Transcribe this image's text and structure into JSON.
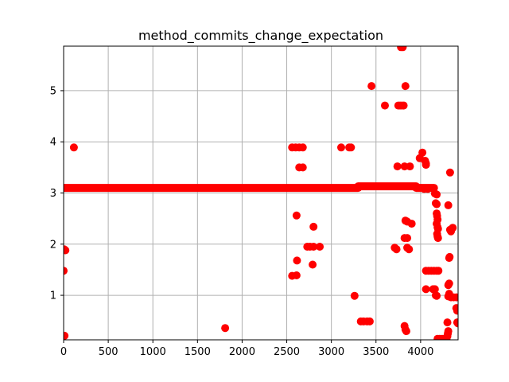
{
  "chart_data": {
    "type": "scatter",
    "title": "method_commits_change_expectation",
    "xlabel": "",
    "ylabel": "",
    "xlim": [
      0,
      4420
    ],
    "ylim": [
      0.13,
      5.87
    ],
    "x_ticks": [
      0,
      500,
      1000,
      1500,
      2000,
      2500,
      3000,
      3500,
      4000
    ],
    "y_ticks": [
      1,
      2,
      3,
      4,
      5
    ],
    "x_tick_labels": [
      "0",
      "500",
      "1000",
      "1500",
      "2000",
      "2500",
      "3000",
      "3500",
      "4000"
    ],
    "y_tick_labels": [
      "1",
      "2",
      "3",
      "4",
      "5"
    ],
    "grid": true,
    "marker_color": "#ff0000",
    "dense_band": {
      "segments": [
        {
          "x_start": 0,
          "x_end": 3300,
          "y": 3.1
        },
        {
          "x_start": 3300,
          "x_end": 3950,
          "y": 3.13
        },
        {
          "x_start": 3950,
          "x_end": 4150,
          "y": 3.1
        }
      ]
    },
    "points": [
      {
        "x": 0,
        "y": 1.48
      },
      {
        "x": 5,
        "y": 1.9
      },
      {
        "x": 20,
        "y": 1.88
      },
      {
        "x": 10,
        "y": 0.21
      },
      {
        "x": 115,
        "y": 3.89
      },
      {
        "x": 1810,
        "y": 0.36
      },
      {
        "x": 2560,
        "y": 3.89
      },
      {
        "x": 2600,
        "y": 3.89
      },
      {
        "x": 2640,
        "y": 3.89
      },
      {
        "x": 2680,
        "y": 3.89
      },
      {
        "x": 2640,
        "y": 3.5
      },
      {
        "x": 2680,
        "y": 3.5
      },
      {
        "x": 2610,
        "y": 2.56
      },
      {
        "x": 2800,
        "y": 2.34
      },
      {
        "x": 2730,
        "y": 1.95
      },
      {
        "x": 2760,
        "y": 1.95
      },
      {
        "x": 2800,
        "y": 1.95
      },
      {
        "x": 2870,
        "y": 1.95
      },
      {
        "x": 2615,
        "y": 1.68
      },
      {
        "x": 2790,
        "y": 1.6
      },
      {
        "x": 2560,
        "y": 1.38
      },
      {
        "x": 2610,
        "y": 1.39
      },
      {
        "x": 3110,
        "y": 3.89
      },
      {
        "x": 3200,
        "y": 3.89
      },
      {
        "x": 3220,
        "y": 3.89
      },
      {
        "x": 3260,
        "y": 0.99
      },
      {
        "x": 3330,
        "y": 0.49
      },
      {
        "x": 3360,
        "y": 0.49
      },
      {
        "x": 3400,
        "y": 0.49
      },
      {
        "x": 3430,
        "y": 0.49
      },
      {
        "x": 3450,
        "y": 5.09
      },
      {
        "x": 3600,
        "y": 4.71
      },
      {
        "x": 3750,
        "y": 4.71
      },
      {
        "x": 3770,
        "y": 4.71
      },
      {
        "x": 3790,
        "y": 4.71
      },
      {
        "x": 3810,
        "y": 4.71
      },
      {
        "x": 3780,
        "y": 5.85
      },
      {
        "x": 3800,
        "y": 5.85
      },
      {
        "x": 3830,
        "y": 5.09
      },
      {
        "x": 3740,
        "y": 3.52
      },
      {
        "x": 3820,
        "y": 3.52
      },
      {
        "x": 3880,
        "y": 3.52
      },
      {
        "x": 3710,
        "y": 1.93
      },
      {
        "x": 3730,
        "y": 1.9
      },
      {
        "x": 3830,
        "y": 2.46
      },
      {
        "x": 3850,
        "y": 2.44
      },
      {
        "x": 3900,
        "y": 2.4
      },
      {
        "x": 3820,
        "y": 2.12
      },
      {
        "x": 3850,
        "y": 2.12
      },
      {
        "x": 3850,
        "y": 1.93
      },
      {
        "x": 3870,
        "y": 1.9
      },
      {
        "x": 3820,
        "y": 0.4
      },
      {
        "x": 3830,
        "y": 0.33
      },
      {
        "x": 3840,
        "y": 0.3
      },
      {
        "x": 3990,
        "y": 3.68
      },
      {
        "x": 4020,
        "y": 3.79
      },
      {
        "x": 4050,
        "y": 3.63
      },
      {
        "x": 4060,
        "y": 3.58
      },
      {
        "x": 4060,
        "y": 3.55
      },
      {
        "x": 4000,
        "y": 3.1
      },
      {
        "x": 4040,
        "y": 3.08
      },
      {
        "x": 4080,
        "y": 3.08
      },
      {
        "x": 4160,
        "y": 2.99
      },
      {
        "x": 4180,
        "y": 2.97
      },
      {
        "x": 4170,
        "y": 2.8
      },
      {
        "x": 4180,
        "y": 2.78
      },
      {
        "x": 4180,
        "y": 2.6
      },
      {
        "x": 4185,
        "y": 2.55
      },
      {
        "x": 4190,
        "y": 2.48
      },
      {
        "x": 4180,
        "y": 2.4
      },
      {
        "x": 4190,
        "y": 2.33
      },
      {
        "x": 4195,
        "y": 2.3
      },
      {
        "x": 4185,
        "y": 2.2
      },
      {
        "x": 4190,
        "y": 2.15
      },
      {
        "x": 4195,
        "y": 2.12
      },
      {
        "x": 4060,
        "y": 1.48
      },
      {
        "x": 4090,
        "y": 1.48
      },
      {
        "x": 4120,
        "y": 1.48
      },
      {
        "x": 4150,
        "y": 1.48
      },
      {
        "x": 4180,
        "y": 1.48
      },
      {
        "x": 4200,
        "y": 1.48
      },
      {
        "x": 4060,
        "y": 1.12
      },
      {
        "x": 4140,
        "y": 1.12
      },
      {
        "x": 4160,
        "y": 1.12
      },
      {
        "x": 4170,
        "y": 1.0
      },
      {
        "x": 4180,
        "y": 0.99
      },
      {
        "x": 4190,
        "y": 0.15
      },
      {
        "x": 4210,
        "y": 0.15
      },
      {
        "x": 4230,
        "y": 0.15
      },
      {
        "x": 4250,
        "y": 0.15
      },
      {
        "x": 4270,
        "y": 0.15
      },
      {
        "x": 4290,
        "y": 0.15
      },
      {
        "x": 4300,
        "y": 0.2
      },
      {
        "x": 4305,
        "y": 0.25
      },
      {
        "x": 4310,
        "y": 0.3
      },
      {
        "x": 4300,
        "y": 0.47
      },
      {
        "x": 4310,
        "y": 0.98
      },
      {
        "x": 4320,
        "y": 1.03
      },
      {
        "x": 4310,
        "y": 1.2
      },
      {
        "x": 4320,
        "y": 1.23
      },
      {
        "x": 4320,
        "y": 1.73
      },
      {
        "x": 4325,
        "y": 1.75
      },
      {
        "x": 4310,
        "y": 2.76
      },
      {
        "x": 4330,
        "y": 3.4
      },
      {
        "x": 4330,
        "y": 2.28
      },
      {
        "x": 4340,
        "y": 2.25
      },
      {
        "x": 4350,
        "y": 2.3
      },
      {
        "x": 4360,
        "y": 2.32
      },
      {
        "x": 4340,
        "y": 0.96
      },
      {
        "x": 4370,
        "y": 0.96
      },
      {
        "x": 4400,
        "y": 0.96
      },
      {
        "x": 4400,
        "y": 0.75
      },
      {
        "x": 4410,
        "y": 0.7
      },
      {
        "x": 4410,
        "y": 0.47
      },
      {
        "x": 4420,
        "y": 0.45
      }
    ]
  }
}
